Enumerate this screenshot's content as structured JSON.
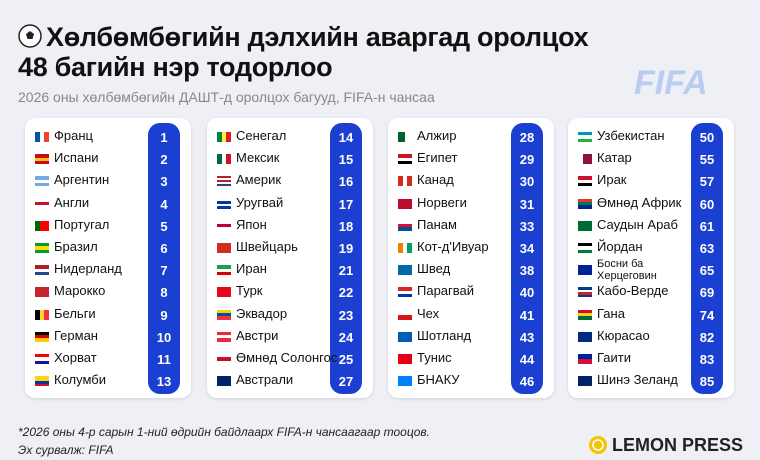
{
  "header": {
    "title_line1": "Хөлбөмбөгийн дэлхийн аваргад оролцох",
    "title_line2": "48 багийн нэр тодорлоо",
    "subtitle": "2026 оны хөлбөмбөгийн ДАШТ-д оролцох багууд, FIFA-н чансаа",
    "logo": "FIFA"
  },
  "columns": [
    [
      {
        "name": "Франц",
        "rank": "1"
      },
      {
        "name": "Испани",
        "rank": "2"
      },
      {
        "name": "Аргентин",
        "rank": "3"
      },
      {
        "name": "Англи",
        "rank": "4"
      },
      {
        "name": "Португал",
        "rank": "5"
      },
      {
        "name": "Бразил",
        "rank": "6"
      },
      {
        "name": "Нидерланд",
        "rank": "7"
      },
      {
        "name": "Марокко",
        "rank": "8"
      },
      {
        "name": "Бельги",
        "rank": "9"
      },
      {
        "name": "Герман",
        "rank": "10"
      },
      {
        "name": "Хорват",
        "rank": "11"
      },
      {
        "name": "Колумби",
        "rank": "13"
      }
    ],
    [
      {
        "name": "Сенегал",
        "rank": "14"
      },
      {
        "name": "Мексик",
        "rank": "15"
      },
      {
        "name": "Америк",
        "rank": "16"
      },
      {
        "name": "Уругвай",
        "rank": "17"
      },
      {
        "name": "Япон",
        "rank": "18"
      },
      {
        "name": "Швейцарь",
        "rank": "19"
      },
      {
        "name": "Иран",
        "rank": "21"
      },
      {
        "name": "Турк",
        "rank": "22"
      },
      {
        "name": "Эквадор",
        "rank": "23"
      },
      {
        "name": "Австри",
        "rank": "24"
      },
      {
        "name": "Өмнөд Солонгос",
        "rank": "25"
      },
      {
        "name": "Австрали",
        "rank": "27"
      }
    ],
    [
      {
        "name": "Алжир",
        "rank": "28"
      },
      {
        "name": "Египет",
        "rank": "29"
      },
      {
        "name": "Канад",
        "rank": "30"
      },
      {
        "name": "Норвеги",
        "rank": "31"
      },
      {
        "name": "Панам",
        "rank": "33"
      },
      {
        "name": "Кот-д'Ивуар",
        "rank": "34"
      },
      {
        "name": "Швед",
        "rank": "38"
      },
      {
        "name": "Парагвай",
        "rank": "40"
      },
      {
        "name": "Чех",
        "rank": "41"
      },
      {
        "name": "Шотланд",
        "rank": "43"
      },
      {
        "name": "Тунис",
        "rank": "44"
      },
      {
        "name": "БНАКУ",
        "rank": "46"
      }
    ],
    [
      {
        "name": "Узбекистан",
        "rank": "50"
      },
      {
        "name": "Катар",
        "rank": "55"
      },
      {
        "name": "Ирак",
        "rank": "57"
      },
      {
        "name": "Өмнөд Африк",
        "rank": "60"
      },
      {
        "name": "Саудын Араб",
        "rank": "61"
      },
      {
        "name": "Йордан",
        "rank": "63"
      },
      {
        "name": "Босни ба\nХерцеговин",
        "rank": "65"
      },
      {
        "name": "Кабо-Верде",
        "rank": "69"
      },
      {
        "name": "Гана",
        "rank": "74"
      },
      {
        "name": "Кюрасао",
        "rank": "82"
      },
      {
        "name": "Гаити",
        "rank": "83"
      },
      {
        "name": "Шинэ Зеланд",
        "rank": "85"
      }
    ]
  ],
  "footer": {
    "note": "*2026 оны 4-р сарын 1-ний өдрийн байдлаарх FIFA-н чансаагаар тооцов.",
    "source": "Эх сурвалж: FIFA",
    "brand": "LEMON PRESS"
  }
}
